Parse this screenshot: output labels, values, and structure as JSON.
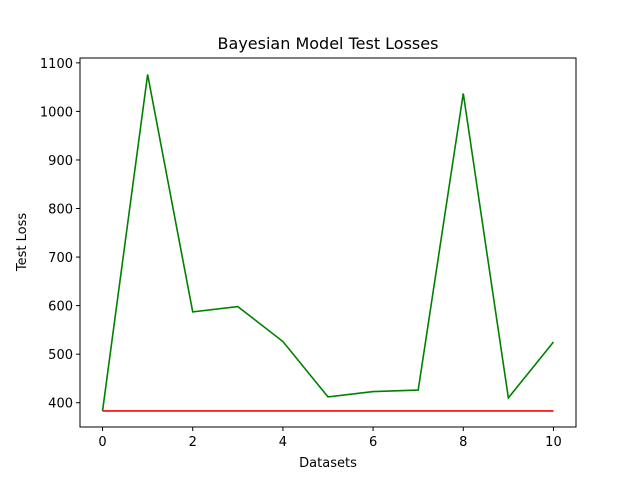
{
  "chart_data": {
    "type": "line",
    "title": "Bayesian Model Test Losses",
    "xlabel": "Datasets",
    "ylabel": "Test Loss",
    "xlim": [
      -0.5,
      10.5
    ],
    "ylim": [
      350,
      1110
    ],
    "xticks": [
      0,
      2,
      4,
      6,
      8,
      10
    ],
    "yticks": [
      400,
      500,
      600,
      700,
      800,
      900,
      1000,
      1100
    ],
    "grid": false,
    "x": [
      0,
      1,
      2,
      3,
      4,
      5,
      6,
      7,
      8,
      9,
      10
    ],
    "series": [
      {
        "color": "#008000",
        "values": [
          383,
          1076,
          587,
          598,
          526,
          412,
          423,
          426,
          1037,
          410,
          525
        ]
      },
      {
        "color": "#ff0000",
        "values": [
          383,
          383,
          383,
          383,
          383,
          383,
          383,
          383,
          383,
          383,
          383
        ]
      }
    ]
  }
}
